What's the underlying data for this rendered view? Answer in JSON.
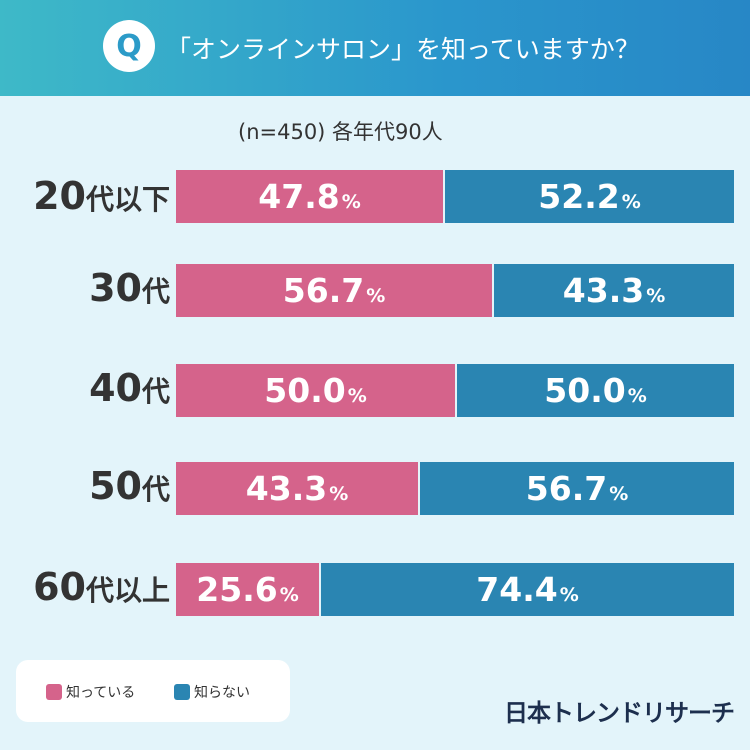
{
  "header": {
    "badge": "Q",
    "question": "「オンラインサロン」を知っていますか？"
  },
  "sample_note": "(n=450) 各年代90人",
  "colors": {
    "know": "#d5638b",
    "dont_know": "#2a85b2"
  },
  "chart_data": {
    "type": "bar",
    "orientation": "horizontal-stacked-100",
    "title": "「オンラインサロン」を知っていますか？",
    "categories": [
      {
        "num": "20",
        "suffix": "代以下"
      },
      {
        "num": "30",
        "suffix": "代"
      },
      {
        "num": "40",
        "suffix": "代"
      },
      {
        "num": "50",
        "suffix": "代"
      },
      {
        "num": "60",
        "suffix": "代以上"
      }
    ],
    "series": [
      {
        "name": "知っている",
        "values": [
          47.8,
          56.7,
          50.0,
          43.3,
          25.6
        ],
        "labels": [
          "47.8",
          "56.7",
          "50.0",
          "43.3",
          "25.6"
        ]
      },
      {
        "name": "知らない",
        "values": [
          52.2,
          43.3,
          50.0,
          56.7,
          74.4
        ],
        "labels": [
          "52.2",
          "43.3",
          "50.0",
          "56.7",
          "74.4"
        ]
      }
    ],
    "unit": "%",
    "xlim": [
      0,
      100
    ]
  },
  "legend": {
    "items": [
      "知っている",
      "知らない"
    ]
  },
  "brand": "日本トレンドリサーチ"
}
